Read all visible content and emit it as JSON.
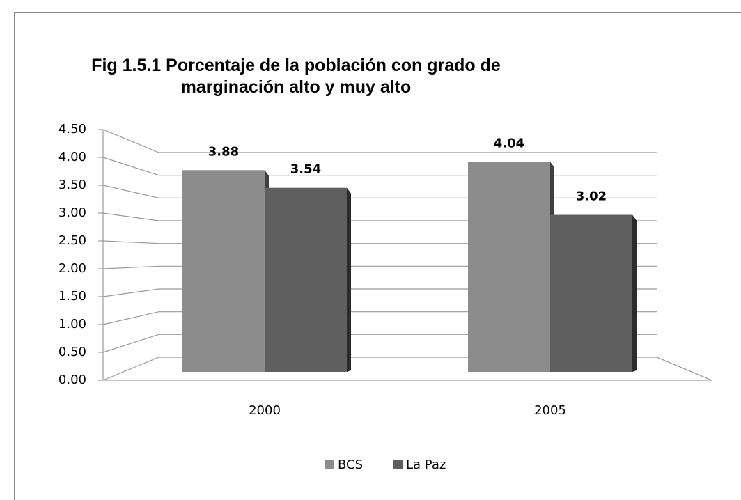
{
  "chart_data": {
    "type": "bar3d",
    "title": "Fig 1.5.1 Porcentaje de la población con grado de marginación alto  y muy alto",
    "categories": [
      "2000",
      "2005"
    ],
    "series": [
      {
        "name": "BCS",
        "color": "#8c8c8c",
        "values": [
          3.88,
          4.04
        ]
      },
      {
        "name": "La Paz",
        "color": "#5f5f5f",
        "values": [
          3.54,
          3.02
        ]
      }
    ],
    "ylim": [
      0,
      4.5
    ],
    "yticks": [
      {
        "value": 0,
        "label": "0.00"
      },
      {
        "value": 0.5,
        "label": "0.50"
      },
      {
        "value": 1,
        "label": "1.00"
      },
      {
        "value": 1.5,
        "label": "1.50"
      },
      {
        "value": 2,
        "label": "2.00"
      },
      {
        "value": 2.5,
        "label": "2.50"
      },
      {
        "value": 3,
        "label": "3.00"
      },
      {
        "value": 3.5,
        "label": "3.50"
      },
      {
        "value": 4,
        "label": "4.00"
      },
      {
        "value": 4.5,
        "label": "4.50"
      }
    ],
    "grid": true,
    "legend": "bottom"
  }
}
